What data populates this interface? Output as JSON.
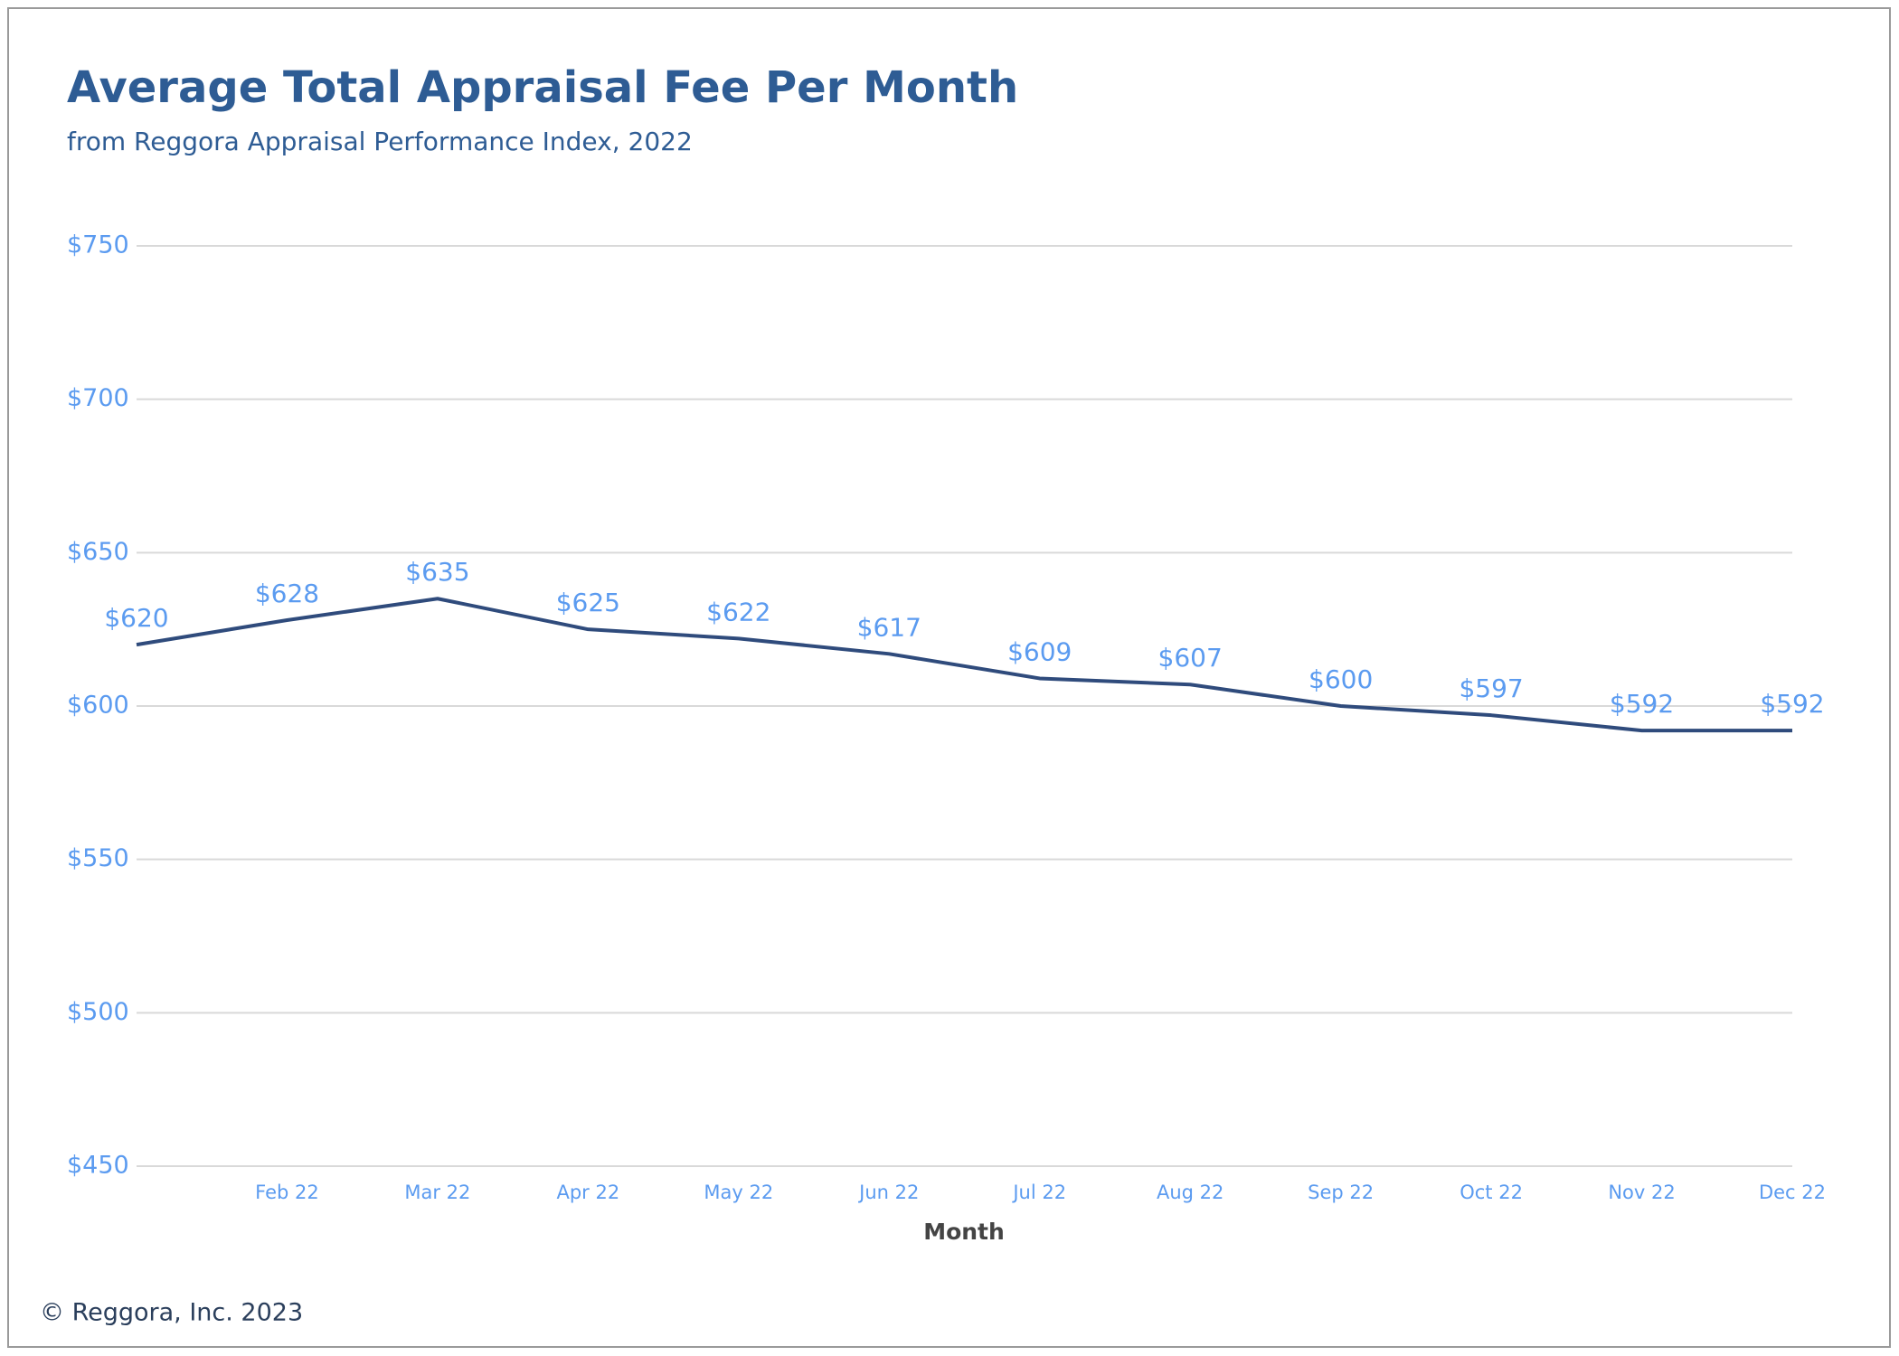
{
  "chart_data": {
    "type": "line",
    "title": "Average Total Appraisal Fee Per Month",
    "subtitle": "from Reggora Appraisal Performance Index, 2022",
    "x_label": "Month",
    "footer": "© Reggora, Inc. 2023",
    "categories": [
      null,
      "Feb 22",
      "Mar 22",
      "Apr 22",
      "May 22",
      "Jun 22",
      "Jul 22",
      "Aug 22",
      "Sep 22",
      "Oct 22",
      "Nov 22",
      "Dec 22"
    ],
    "series": [
      {
        "name": "Average Total Appraisal Fee",
        "color": "#2f4b7c",
        "values": [
          620,
          628,
          635,
          625,
          622,
          617,
          609,
          607,
          600,
          597,
          592,
          592
        ],
        "value_labels": [
          "$620",
          "$628",
          "$635",
          "$625",
          "$622",
          "$617",
          "$609",
          "$607",
          "$600",
          "$597",
          "$592",
          "$592"
        ]
      }
    ],
    "ylim": [
      450,
      750
    ],
    "yticks": [
      {
        "value": 450,
        "label": "$450"
      },
      {
        "value": 500,
        "label": "$500"
      },
      {
        "value": 550,
        "label": "$550"
      },
      {
        "value": 600,
        "label": "$600"
      },
      {
        "value": 650,
        "label": "$650"
      },
      {
        "value": 700,
        "label": "$700"
      },
      {
        "value": 750,
        "label": "$750"
      }
    ],
    "grid": true
  }
}
